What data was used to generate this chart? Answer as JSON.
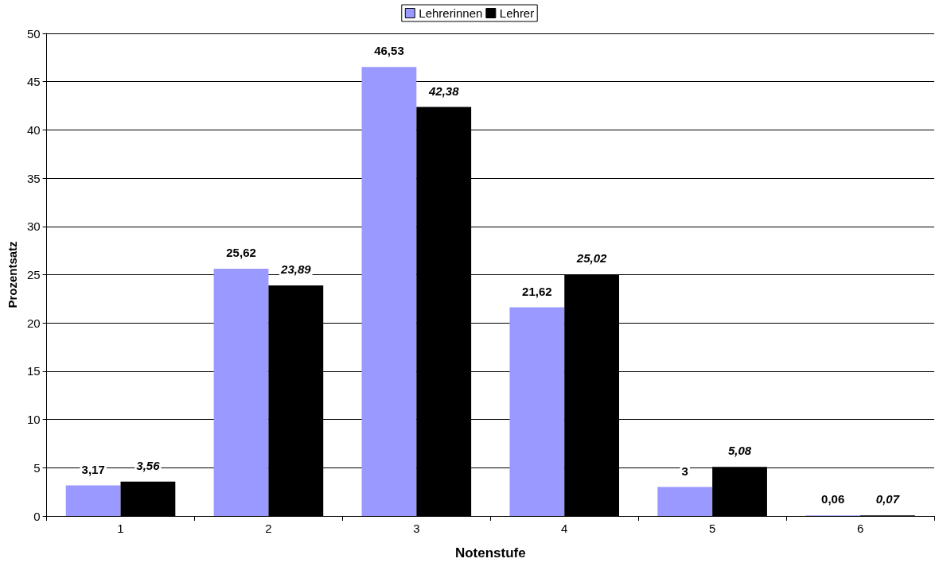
{
  "chart_data": {
    "type": "bar",
    "xlabel": "Notenstufe",
    "ylabel": "Prozentsatz",
    "categories": [
      "1",
      "2",
      "3",
      "4",
      "5",
      "6"
    ],
    "series": [
      {
        "name": "Lehrerinnen",
        "color": "#9999ff",
        "values": [
          3.17,
          25.62,
          46.53,
          21.62,
          3,
          0.06
        ],
        "value_labels": [
          "3,17",
          "25,62",
          "46,53",
          "21,62",
          "3",
          "0,06"
        ]
      },
      {
        "name": "Lehrer",
        "color": "#000000",
        "values": [
          3.56,
          23.89,
          42.38,
          25.02,
          5.08,
          0.07
        ],
        "value_labels": [
          "3,56",
          "23,89",
          "42,38",
          "25,02",
          "5,08",
          "0,07"
        ]
      }
    ],
    "ylim": [
      0,
      50
    ],
    "yticks": [
      0,
      5,
      10,
      15,
      20,
      25,
      30,
      35,
      40,
      45,
      50
    ],
    "grid": "y",
    "legend": "top"
  }
}
